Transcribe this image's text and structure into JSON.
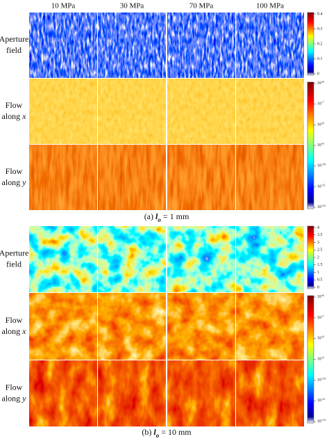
{
  "columns": [
    "10 MPa",
    "30 MPa",
    "70 MPa",
    "100 MPa"
  ],
  "sections": [
    {
      "rows": [
        {
          "line1": "Aperture",
          "line2": "field"
        },
        {
          "line1": "Flow",
          "line2": "along",
          "variable": "x"
        },
        {
          "line1": "Flow",
          "line2": "along",
          "variable": "y"
        }
      ],
      "colorbars": [
        {
          "ticks": [
            "0.4",
            "0.3",
            "0.2",
            "0.1",
            "0"
          ]
        },
        {
          "ticks": [
            {
              "base": "10",
              "exponent": "-6"
            },
            {
              "base": "10",
              "exponent": "-7"
            },
            {
              "base": "10",
              "exponent": "-8"
            },
            {
              "base": "10",
              "exponent": "-9"
            },
            {
              "base": "10",
              "exponent": "-10"
            },
            {
              "base": "10",
              "exponent": "-11"
            },
            {
              "base": "10",
              "exponent": "-12"
            }
          ]
        }
      ],
      "caption": {
        "prefix": "(a)",
        "symbol": "l",
        "subscript": "o",
        "suffix": "= 1 mm"
      }
    },
    {
      "rows": [
        {
          "line1": "Aperture",
          "line2": "field"
        },
        {
          "line1": "Flow",
          "line2": "along",
          "variable": "x"
        },
        {
          "line1": "Flow",
          "line2": "along",
          "variable": "y"
        }
      ],
      "colorbars": [
        {
          "ticks": [
            "4",
            "3.5",
            "3",
            "2.5",
            "2",
            "1.5",
            "1",
            "0.5",
            "0"
          ]
        },
        {
          "ticks": [
            {
              "base": "10",
              "exponent": "-6"
            },
            {
              "base": "10",
              "exponent": "-7"
            },
            {
              "base": "10",
              "exponent": "-8"
            },
            {
              "base": "10",
              "exponent": "-9"
            },
            {
              "base": "10",
              "exponent": "-10"
            },
            {
              "base": "10",
              "exponent": "-11"
            },
            {
              "base": "10",
              "exponent": "-12"
            }
          ]
        }
      ],
      "caption": {
        "prefix": "(b)",
        "symbol": "l",
        "subscript": "o",
        "suffix": "= 10 mm"
      }
    }
  ]
}
